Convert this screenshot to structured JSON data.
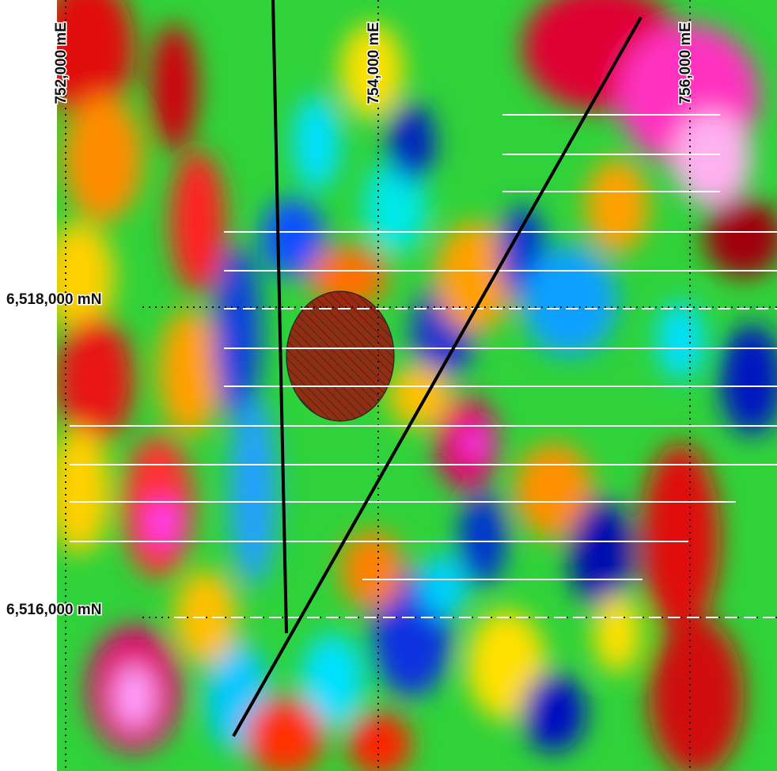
{
  "easting_labels": [
    "752,000 mE",
    "754,000 mE",
    "756,000 mE"
  ],
  "northing_labels": [
    "6,518,000 mN",
    "6,516,000 mN"
  ]
}
